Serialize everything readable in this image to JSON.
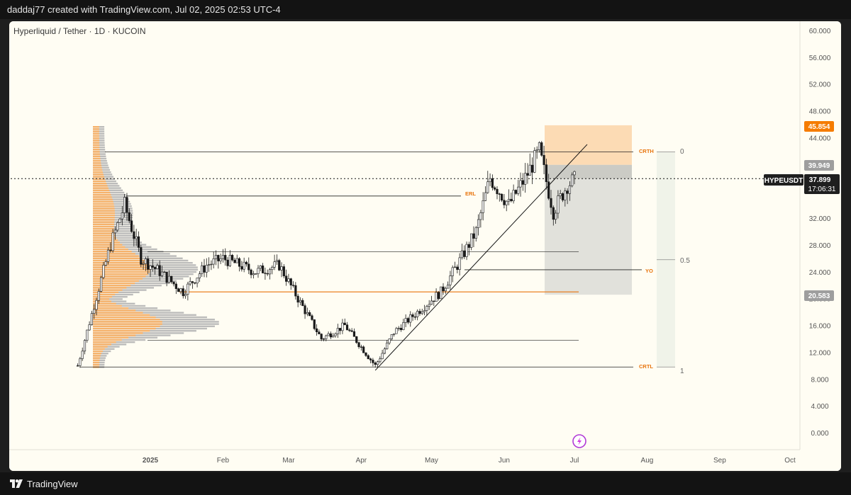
{
  "header": {
    "caption": "daddaj77 created with TradingView.com, Jul 02, 2025 02:53 UTC-4"
  },
  "footer": {
    "brand": "TradingView"
  },
  "chart": {
    "symbol_title": "Hyperliquid / Tether · 1D · KUCOIN",
    "ticker_label": "HYPEUSDT",
    "current_price": "37.899",
    "countdown": "17:06:31",
    "target_price_label": "45.854",
    "entry_price_label": "39.949",
    "stop_price_label": "20.583",
    "fib_labels": [
      "0",
      "0.5",
      "1"
    ],
    "level_labels": {
      "crth": "CRTH",
      "erl": "ERL",
      "yo": "YO",
      "crtl": "CRTL"
    }
  },
  "colors": {
    "background": "#fffdf3",
    "candle_up": "#f5f5f5",
    "candle_down": "#1a1a1a",
    "volume_profile_orange": "#f6b26b",
    "volume_profile_gray": "#b0b0b0",
    "profit_zone": "#fbd5a8",
    "loss_zone": "#dcdcd6",
    "level_orange": "#e8740c",
    "target_badge": "#f57c00",
    "entry_badge": "#9e9e9e",
    "ticker_badge": "#1f1f1f"
  },
  "chart_data": {
    "type": "candlestick",
    "title": "Hyperliquid / Tether · 1D · KUCOIN",
    "x_ticks": [
      "2025",
      "Feb",
      "Mar",
      "Apr",
      "May",
      "Jun",
      "Jul",
      "Aug",
      "Sep",
      "Oct"
    ],
    "y_ticks": [
      "0.000",
      "4.000",
      "8.000",
      "12.000",
      "16.000",
      "20.000",
      "24.000",
      "28.000",
      "32.000",
      "36.000",
      "40.000",
      "44.000",
      "48.000",
      "52.000",
      "56.000",
      "60.000"
    ],
    "ylim": [
      0,
      60
    ],
    "approx_close_path": [
      {
        "date": "2024-12-01",
        "close": 10.0
      },
      {
        "date": "2024-12-08",
        "close": 19.0
      },
      {
        "date": "2024-12-15",
        "close": 28.0
      },
      {
        "date": "2024-12-21",
        "close": 34.0
      },
      {
        "date": "2024-12-28",
        "close": 26.0
      },
      {
        "date": "2025-01-05",
        "close": 24.0
      },
      {
        "date": "2025-01-15",
        "close": 21.0
      },
      {
        "date": "2025-01-25",
        "close": 25.0
      },
      {
        "date": "2025-02-01",
        "close": 26.0
      },
      {
        "date": "2025-02-15",
        "close": 24.0
      },
      {
        "date": "2025-02-25",
        "close": 25.0
      },
      {
        "date": "2025-03-05",
        "close": 20.0
      },
      {
        "date": "2025-03-15",
        "close": 14.0
      },
      {
        "date": "2025-03-25",
        "close": 16.0
      },
      {
        "date": "2025-04-07",
        "close": 10.0
      },
      {
        "date": "2025-04-15",
        "close": 15.0
      },
      {
        "date": "2025-04-25",
        "close": 18.0
      },
      {
        "date": "2025-05-05",
        "close": 21.0
      },
      {
        "date": "2025-05-12",
        "close": 25.0
      },
      {
        "date": "2025-05-20",
        "close": 30.0
      },
      {
        "date": "2025-05-26",
        "close": 38.0
      },
      {
        "date": "2025-06-03",
        "close": 34.0
      },
      {
        "date": "2025-06-10",
        "close": 38.0
      },
      {
        "date": "2025-06-16",
        "close": 42.0
      },
      {
        "date": "2025-06-22",
        "close": 33.0
      },
      {
        "date": "2025-06-28",
        "close": 37.0
      },
      {
        "date": "2025-07-02",
        "close": 37.899
      }
    ],
    "levels": [
      {
        "label": "CRTH",
        "price": 41.9
      },
      {
        "label": "ERL",
        "price": 35.3
      },
      {
        "label": "YO",
        "price": 24.3
      },
      {
        "label": "CRTL",
        "price": 9.8
      }
    ],
    "fib": [
      {
        "ratio": "0",
        "price": 41.9
      },
      {
        "ratio": "0.5",
        "price": 25.8
      },
      {
        "ratio": "1",
        "price": 9.8
      }
    ],
    "position": {
      "entry": 39.949,
      "target": 45.854,
      "stop": 20.583
    },
    "last_price": 37.899
  }
}
